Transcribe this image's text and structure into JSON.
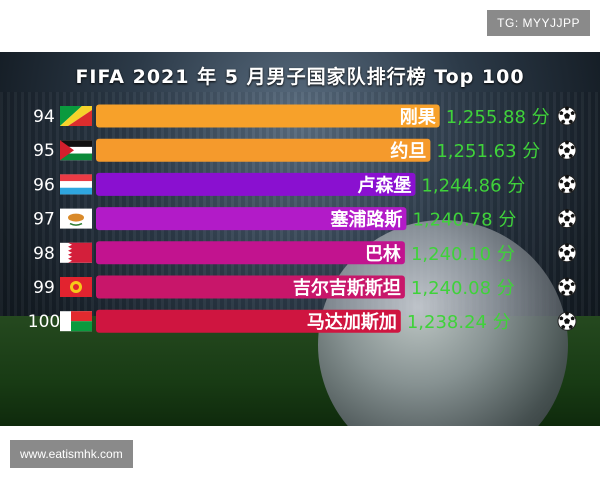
{
  "watermark_top": "TG: MYYJJPP",
  "watermark_bottom": "www.eatismhk.com",
  "chart_data": {
    "type": "bar",
    "title": "FIFA 2021 年 5 月男子国家队排行榜 Top 100",
    "value_suffix": "分",
    "categories": [
      "刚果",
      "约旦",
      "卢森堡",
      "塞浦路斯",
      "巴林",
      "吉尔吉斯斯坦",
      "马达加斯加"
    ],
    "ranks": [
      "94",
      "95",
      "96",
      "97",
      "98",
      "99",
      "100"
    ],
    "values": [
      1255.88,
      1251.63,
      1244.86,
      1240.78,
      1240.1,
      1240.08,
      1238.24
    ],
    "value_labels": [
      "1,255.88",
      "1,251.63",
      "1,244.86",
      "1,240.78",
      "1,240.10",
      "1,240.08",
      "1,238.24"
    ],
    "bar_colors": [
      "#f7a12a",
      "#f59a2c",
      "#8a10d0",
      "#b21bc8",
      "#c2138f",
      "#c8166a",
      "#cf1540"
    ],
    "flag_icons": [
      "congo-flag-icon",
      "jordan-flag-icon",
      "luxembourg-flag-icon",
      "cyprus-flag-icon",
      "bahrain-flag-icon",
      "kyrgyzstan-flag-icon",
      "madagascar-flag-icon"
    ],
    "end_icon": "soccer-ball-icon",
    "xlim": [
      1100,
      1256
    ]
  }
}
